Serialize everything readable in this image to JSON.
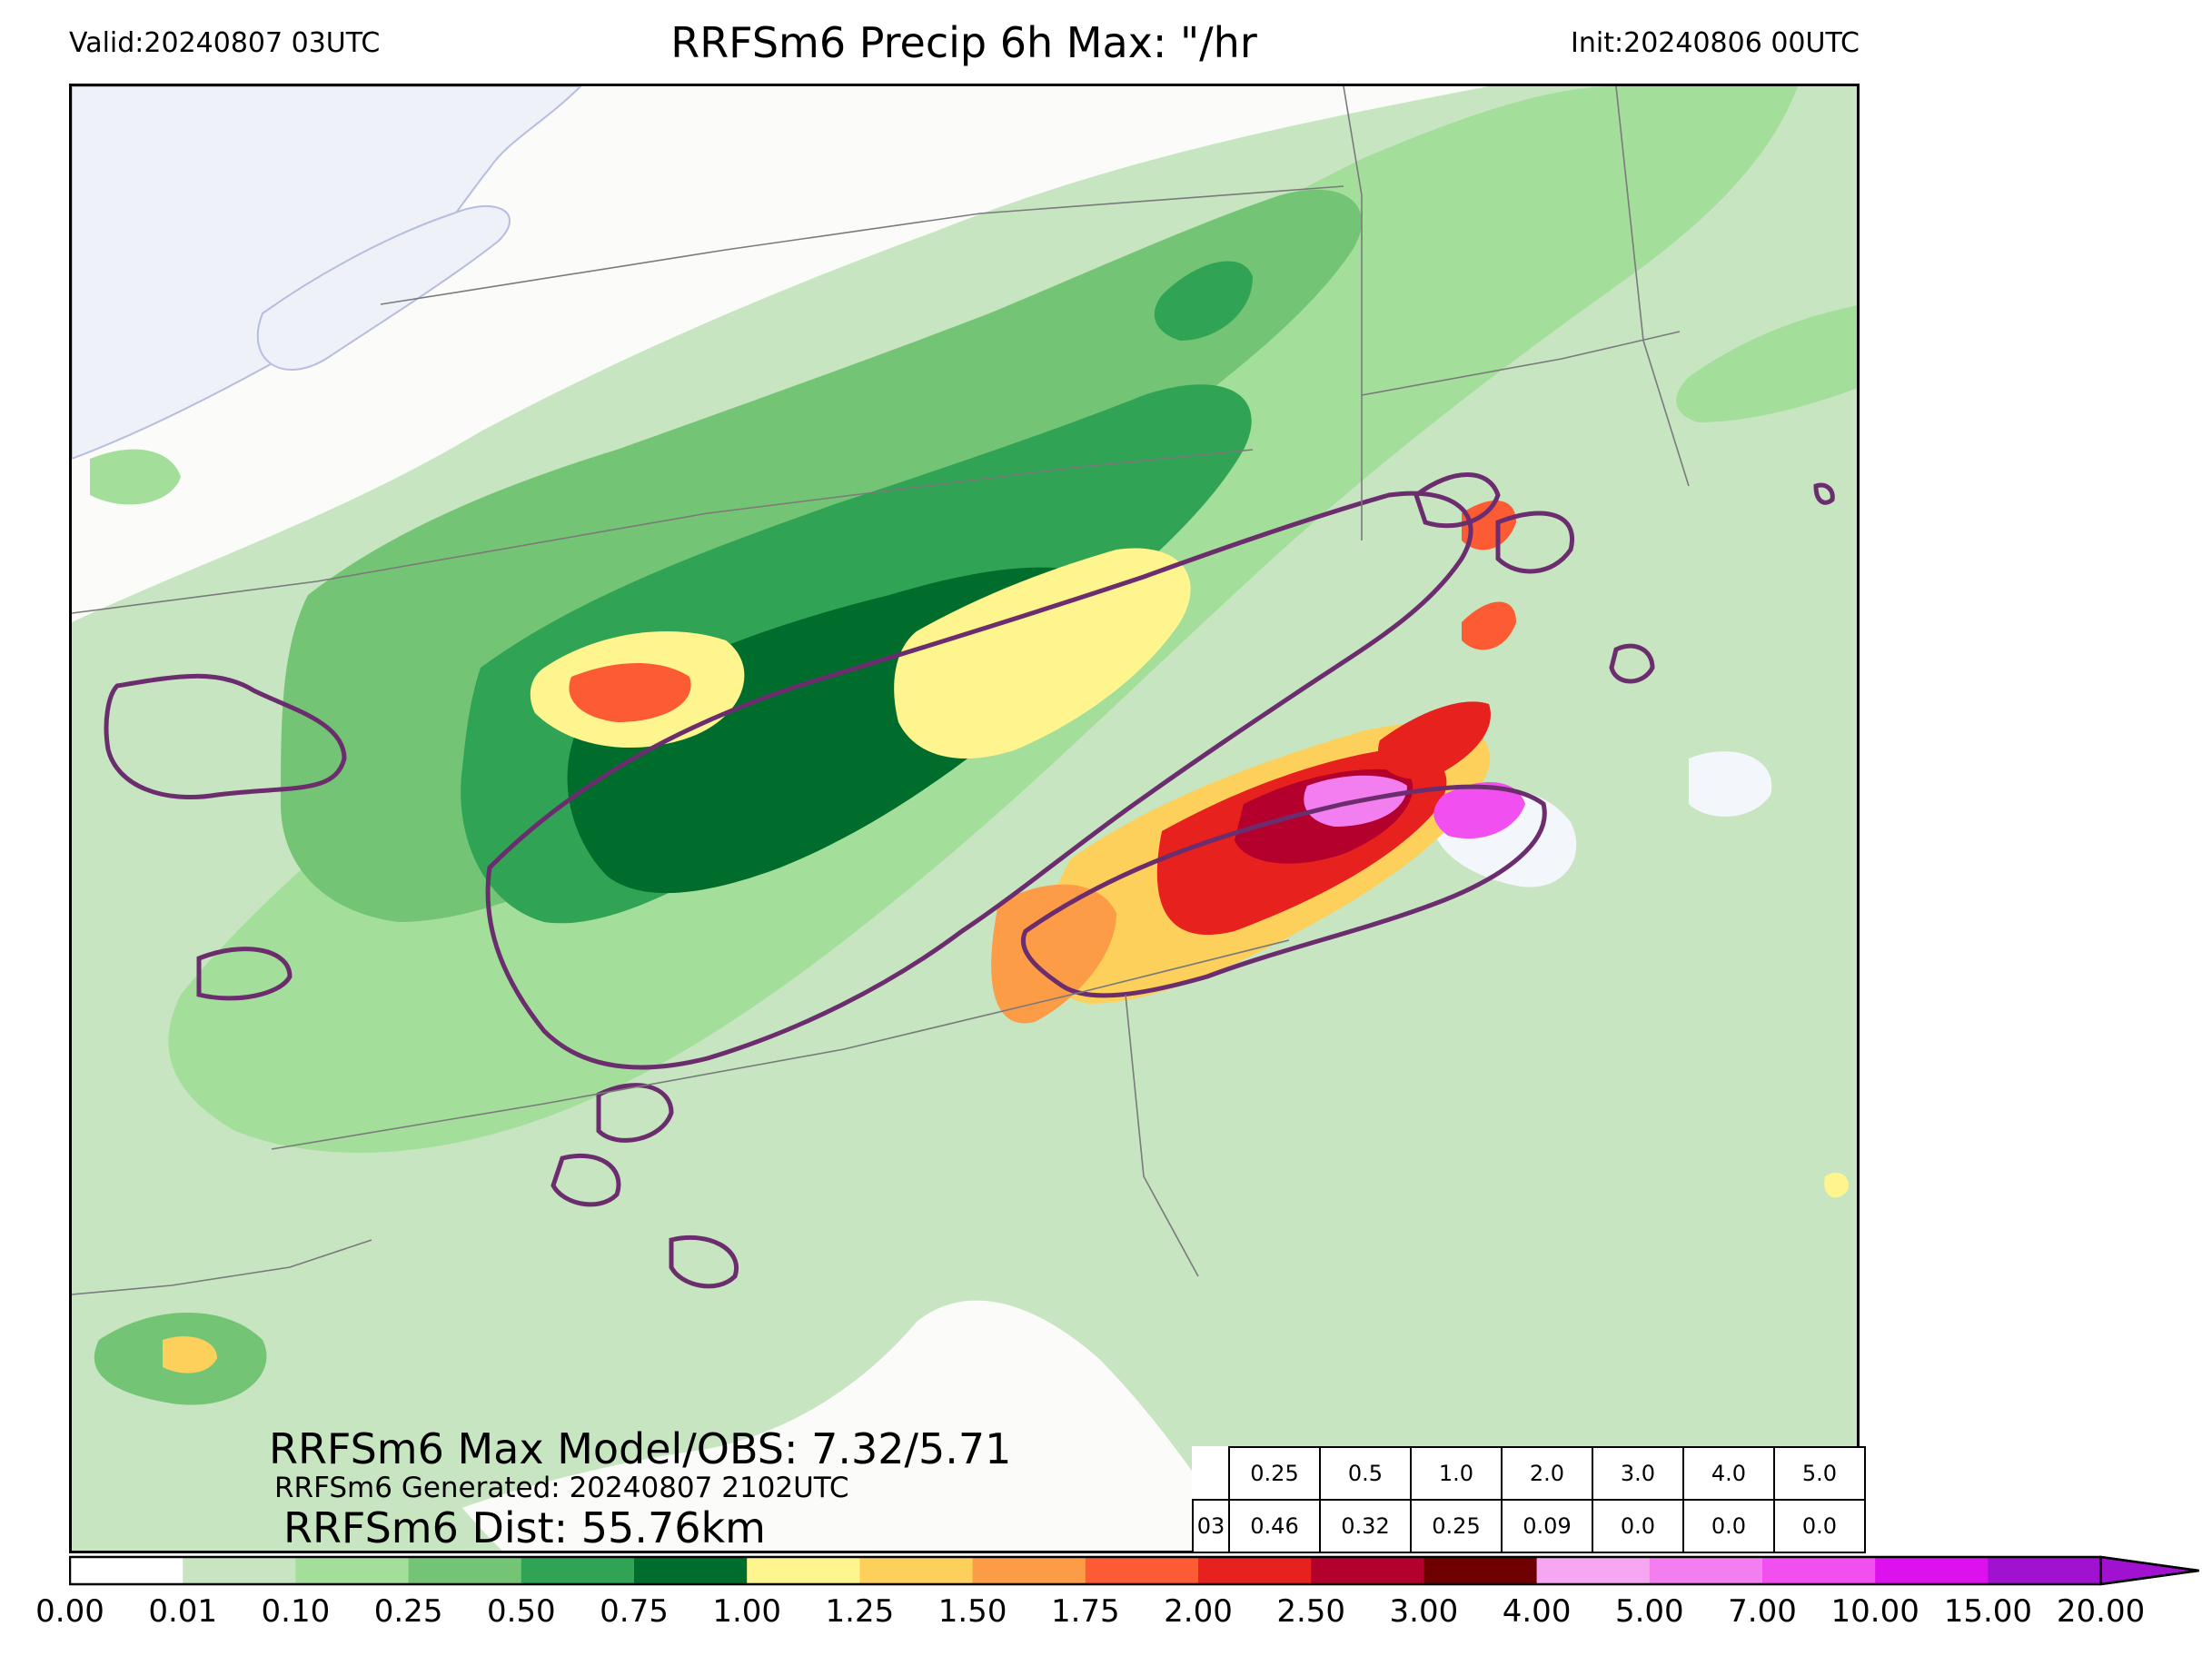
{
  "header": {
    "title": "RRFSm6 Precip 6h Max: \"/hr",
    "valid": "Valid:20240807 03UTC",
    "init": "Init:20240806 00UTC"
  },
  "stats": {
    "max_model_obs": "RRFSm6 Max Model/OBS: 7.32/5.71",
    "generated": "RRFSm6 Generated: 20240807 2102UTC",
    "distance": "RRFSm6 Dist: 55.76km"
  },
  "threshold_table": {
    "thresholds": [
      "0.25",
      "0.5",
      "1.0",
      "2.0",
      "3.0",
      "4.0",
      "5.0"
    ],
    "row_label": "03",
    "values": [
      "0.46",
      "0.32",
      "0.25",
      "0.09",
      "0.0",
      "0.0",
      "0.0"
    ]
  },
  "colorbar": {
    "ticks": [
      "0.00",
      "0.01",
      "0.10",
      "0.25",
      "0.50",
      "0.75",
      "1.00",
      "1.25",
      "1.50",
      "1.75",
      "2.00",
      "2.50",
      "3.00",
      "4.00",
      "5.00",
      "7.00",
      "10.00",
      "15.00",
      "20.00"
    ],
    "colors": [
      "#ffffff",
      "#c7e5c1",
      "#a3df9b",
      "#74c476",
      "#31a354",
      "#006d2c",
      "#fff58f",
      "#fdd05c",
      "#fd9c47",
      "#fc5b33",
      "#e7211e",
      "#b3002d",
      "#6f0000",
      "#f7a7f1",
      "#f27ef0",
      "#f24ff0",
      "#dd11ee",
      "#a011d0"
    ]
  }
}
